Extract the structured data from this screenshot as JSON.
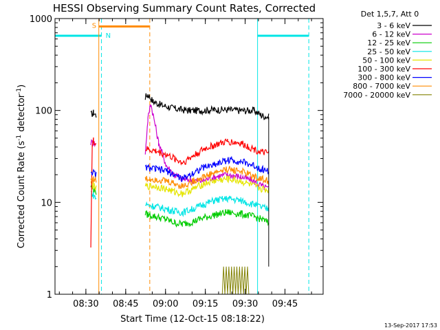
{
  "chart_data": {
    "type": "line",
    "title": "HESSI Observing Summary Count Rates, Corrected",
    "xlabel": "Start Time (12-Oct-15 08:18:22)",
    "ylabel_main": "Corrected Count Rate (s",
    "ylabel_sup1": "-1",
    "ylabel_mid": " detector",
    "ylabel_sup2": "-1",
    "ylabel_end": ")",
    "yscale": "log",
    "ylim": [
      1,
      1000
    ],
    "xlim_minutes": [
      0,
      101
    ],
    "ytick_labels": [
      "1",
      "10",
      "100",
      "1000"
    ],
    "xtick_labels": [
      "08:30",
      "08:45",
      "09:00",
      "09:15",
      "09:30",
      "09:45"
    ],
    "legend_header": "Det 1,5,7, Att 0",
    "timestamp": "13-Sep-2017 17:53",
    "flags": {
      "saa_label": "S",
      "night_label": "N"
    },
    "flag_intervals": {
      "night": [
        [
          0,
          17.5
        ],
        [
          76.3,
          95.6
        ]
      ],
      "saa": [
        [
          16.5,
          35.7
        ]
      ]
    },
    "data_gaps": [
      [
        15.5,
        34.0
      ],
      [
        80.5,
        101
      ]
    ],
    "series": [
      {
        "name": "3 - 6 keV",
        "color": "#000000",
        "points": [
          [
            13.5,
            90
          ],
          [
            14.5,
            95
          ],
          [
            15.5,
            88
          ],
          null,
          [
            34.0,
            140
          ],
          [
            35.0,
            150
          ],
          [
            37.0,
            125
          ],
          [
            40.0,
            115
          ],
          [
            45.0,
            105
          ],
          [
            50.0,
            100
          ],
          [
            55.0,
            100
          ],
          [
            60.0,
            102
          ],
          [
            65.0,
            102
          ],
          [
            70.0,
            100
          ],
          [
            75.0,
            100
          ],
          [
            78.0,
            88
          ],
          [
            80.5,
            85
          ]
        ]
      },
      {
        "name": "6 - 12 keV",
        "color": "#cc00cc",
        "points": [
          [
            13.5,
            45
          ],
          [
            14.5,
            45
          ],
          [
            15.5,
            42
          ],
          null,
          [
            34.0,
            35
          ],
          [
            35.0,
            80
          ],
          [
            36.0,
            120
          ],
          [
            37.0,
            90
          ],
          [
            39.0,
            45
          ],
          [
            42.0,
            25
          ],
          [
            45.0,
            20
          ],
          [
            48.0,
            18
          ],
          [
            55.0,
            17
          ],
          [
            60.0,
            19
          ],
          [
            65.0,
            20
          ],
          [
            70.0,
            19
          ],
          [
            75.0,
            17
          ],
          [
            78.0,
            15
          ],
          [
            80.5,
            14
          ]
        ]
      },
      {
        "name": "12 - 25 keV",
        "color": "#00cc00",
        "points": [
          [
            13.5,
            15
          ],
          [
            14.5,
            14
          ],
          [
            15.5,
            13
          ],
          null,
          [
            34.0,
            7.5
          ],
          [
            38.0,
            7.0
          ],
          [
            42.0,
            6.5
          ],
          [
            45.0,
            6.0
          ],
          [
            48.0,
            5.8
          ],
          [
            52.0,
            6.2
          ],
          [
            56.0,
            6.8
          ],
          [
            60.0,
            7.3
          ],
          [
            65.0,
            7.8
          ],
          [
            70.0,
            7.5
          ],
          [
            75.0,
            7.0
          ],
          [
            78.0,
            6.5
          ],
          [
            80.5,
            6.0
          ]
        ]
      },
      {
        "name": "25 - 50 keV",
        "color": "#00e5e5",
        "points": [
          [
            13.5,
            13
          ],
          [
            14.5,
            12
          ],
          [
            15.5,
            11
          ],
          null,
          [
            34.0,
            9.5
          ],
          [
            38.0,
            9.0
          ],
          [
            42.0,
            8.5
          ],
          [
            45.0,
            8.0
          ],
          [
            48.0,
            7.8
          ],
          [
            52.0,
            8.5
          ],
          [
            56.0,
            9.5
          ],
          [
            60.0,
            10.5
          ],
          [
            65.0,
            11.0
          ],
          [
            70.0,
            10.5
          ],
          [
            75.0,
            9.5
          ],
          [
            78.0,
            8.8
          ],
          [
            80.5,
            8.5
          ]
        ]
      },
      {
        "name": "50 - 100 keV",
        "color": "#e5e500",
        "points": [
          [
            13.5,
            16
          ],
          [
            14.5,
            15
          ],
          [
            15.5,
            14
          ],
          null,
          [
            34.0,
            15
          ],
          [
            38.0,
            15
          ],
          [
            42.0,
            14
          ],
          [
            45.0,
            13
          ],
          [
            48.0,
            12.5
          ],
          [
            52.0,
            14
          ],
          [
            56.0,
            16
          ],
          [
            60.0,
            17
          ],
          [
            65.0,
            18
          ],
          [
            70.0,
            17
          ],
          [
            75.0,
            15
          ],
          [
            78.0,
            14
          ],
          [
            80.5,
            13.5
          ]
        ]
      },
      {
        "name": "100 - 300 keV",
        "color": "#ff0000",
        "points": [
          [
            13.5,
            3.5
          ],
          [
            14.0,
            40
          ],
          [
            14.5,
            47
          ],
          [
            15.5,
            43
          ],
          null,
          [
            34.0,
            38
          ],
          [
            38.0,
            36
          ],
          [
            42.0,
            33
          ],
          [
            45.0,
            30
          ],
          [
            48.0,
            27
          ],
          [
            52.0,
            32
          ],
          [
            56.0,
            38
          ],
          [
            60.0,
            42
          ],
          [
            65.0,
            46
          ],
          [
            70.0,
            44
          ],
          [
            75.0,
            38
          ],
          [
            78.0,
            35
          ],
          [
            80.5,
            34
          ]
        ]
      },
      {
        "name": "300 - 800 keV",
        "color": "#0000ff",
        "points": [
          [
            13.5,
            22
          ],
          [
            14.5,
            21
          ],
          [
            15.5,
            20
          ],
          null,
          [
            34.0,
            24
          ],
          [
            38.0,
            23
          ],
          [
            42.0,
            22
          ],
          [
            45.0,
            20
          ],
          [
            48.0,
            18
          ],
          [
            52.0,
            21
          ],
          [
            56.0,
            24
          ],
          [
            60.0,
            26
          ],
          [
            65.0,
            29
          ],
          [
            70.0,
            28
          ],
          [
            75.0,
            25
          ],
          [
            78.0,
            23
          ],
          [
            80.5,
            22
          ]
        ]
      },
      {
        "name": "800 - 7000 keV",
        "color": "#ff8c00",
        "points": [
          [
            13.5,
            18
          ],
          [
            14.5,
            18
          ],
          [
            15.5,
            17
          ],
          null,
          [
            34.0,
            18
          ],
          [
            38.0,
            18
          ],
          [
            42.0,
            17
          ],
          [
            45.0,
            16
          ],
          [
            48.0,
            15
          ],
          [
            52.0,
            17
          ],
          [
            56.0,
            19
          ],
          [
            60.0,
            21
          ],
          [
            65.0,
            23
          ],
          [
            70.0,
            22
          ],
          [
            75.0,
            19
          ],
          [
            78.0,
            18
          ],
          [
            80.5,
            17
          ]
        ]
      },
      {
        "name": "7000 - 20000 keV",
        "color": "#808000",
        "points": [
          [
            63.0,
            1.0
          ],
          [
            63.5,
            2.0
          ],
          [
            64.0,
            1.0
          ],
          [
            64.5,
            2.0
          ],
          [
            65.0,
            1.0
          ],
          [
            65.5,
            2.0
          ],
          [
            66.0,
            1.0
          ],
          [
            66.5,
            2.0
          ],
          [
            67.0,
            1.0
          ],
          [
            67.5,
            2.0
          ],
          [
            68.0,
            1.0
          ],
          [
            68.5,
            2.0
          ],
          [
            69.0,
            1.0
          ],
          [
            69.5,
            2.0
          ],
          [
            70.0,
            1.0
          ],
          [
            70.5,
            2.0
          ],
          [
            71.0,
            1.0
          ],
          [
            71.5,
            2.0
          ],
          [
            72.0,
            1.0
          ],
          [
            72.5,
            2.0
          ],
          [
            73.0,
            1.0
          ]
        ]
      }
    ],
    "colors": {
      "night": "#00e5e5",
      "saa": "#ff8c00",
      "axis": "#000000",
      "background": "#ffffff"
    }
  }
}
